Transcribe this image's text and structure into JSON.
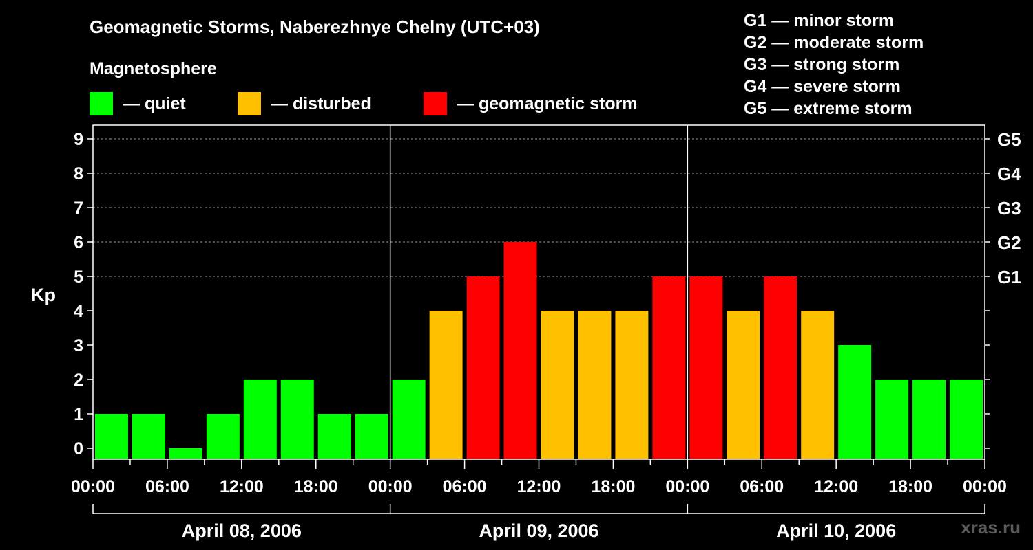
{
  "title": "Geomagnetic Storms, Naberezhnye Chelny (UTC+03)",
  "magnetosphere_label": "Magnetosphere",
  "legend": [
    {
      "label": "— quiet",
      "color": "#00ff00"
    },
    {
      "label": "— disturbed",
      "color": "#ffc000"
    },
    {
      "label": "— geomagnetic storm",
      "color": "#ff0000"
    }
  ],
  "g_scale": [
    "G1 — minor storm",
    "G2 — moderate storm",
    "G3 — strong storm",
    "G4 — severe storm",
    "G5 — extreme storm"
  ],
  "watermark": "xras.ru",
  "chart_data": {
    "type": "bar",
    "title": "Geomagnetic Storms, Naberezhnye Chelny (UTC+03)",
    "ylabel": "Kp",
    "ylim": [
      0,
      9
    ],
    "yticks": [
      "0",
      "1",
      "2",
      "3",
      "4",
      "5",
      "6",
      "7",
      "8",
      "9"
    ],
    "right_ticks": [
      {
        "kp": 5,
        "label": "G1"
      },
      {
        "kp": 6,
        "label": "G2"
      },
      {
        "kp": 7,
        "label": "G3"
      },
      {
        "kp": 8,
        "label": "G4"
      },
      {
        "kp": 9,
        "label": "G5"
      }
    ],
    "xtick_labels": [
      "00:00",
      "06:00",
      "12:00",
      "18:00",
      "00:00",
      "06:00",
      "12:00",
      "18:00",
      "00:00",
      "06:00",
      "12:00",
      "18:00",
      "00:00"
    ],
    "days": [
      "April 08, 2006",
      "April 09, 2006",
      "April 10, 2006"
    ],
    "bar_interval_hours": 3,
    "values": [
      1,
      1,
      0,
      1,
      2,
      2,
      1,
      1,
      2,
      4,
      5,
      6,
      4,
      4,
      4,
      5,
      5,
      4,
      5,
      4,
      3,
      2,
      2,
      2
    ],
    "colors": {
      "quiet": "#00ff00",
      "disturbed": "#ffc000",
      "storm": "#ff0000"
    },
    "thresholds": {
      "disturbed_min": 4,
      "storm_min": 5
    },
    "grid": true
  }
}
